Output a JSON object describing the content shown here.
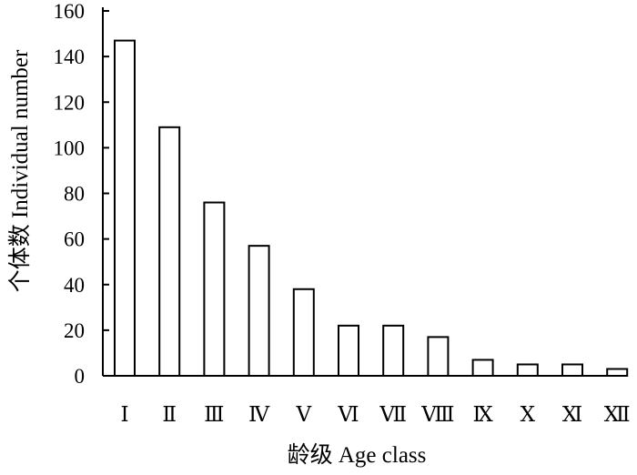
{
  "chart_data": {
    "type": "bar",
    "categories": [
      "Ⅰ",
      "Ⅱ",
      "Ⅲ",
      "Ⅳ",
      "Ⅴ",
      "Ⅵ",
      "Ⅶ",
      "Ⅷ",
      "Ⅸ",
      "Ⅹ",
      "Ⅺ",
      "Ⅻ"
    ],
    "values": [
      147,
      109,
      76,
      57,
      38,
      22,
      22,
      17,
      7,
      5,
      5,
      3
    ],
    "title": "",
    "xlabel": "龄级 Age class",
    "ylabel": "个体数 Individual number",
    "ylim": [
      0,
      160
    ],
    "yticks": [
      0,
      20,
      40,
      60,
      80,
      100,
      120,
      140,
      160
    ],
    "grid": false,
    "legend": "none",
    "colors": {
      "bar_fill": "#ffffff",
      "bar_stroke": "#000000",
      "axis": "#000000"
    }
  }
}
